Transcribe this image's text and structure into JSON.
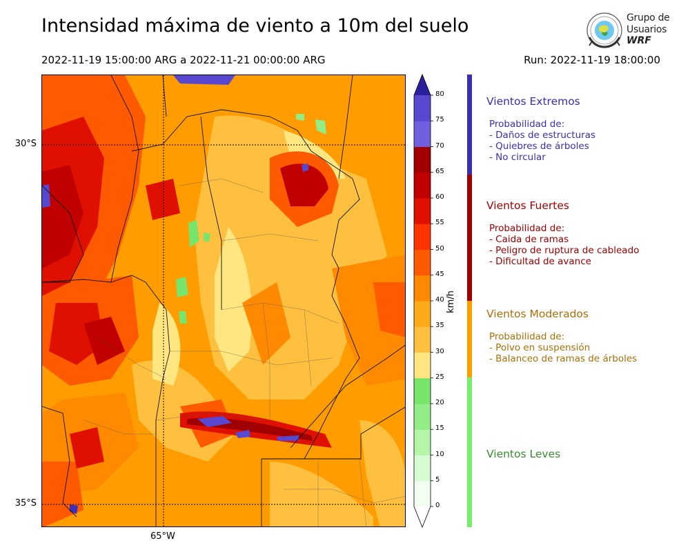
{
  "header": {
    "title": "Intensidad máxima de viento a 10m del suelo",
    "period": "2022-11-19 15:00:00 ARG  a  2022-11-21 00:00:00 ARG",
    "run": "Run: 2022-11-19 18:00:00"
  },
  "logo": {
    "line1": "Grupo de",
    "line2": "Usuarios",
    "line3": "WRF"
  },
  "map": {
    "lat_labels": [
      {
        "text": "30°S",
        "value": -30
      },
      {
        "text": "35°S",
        "value": -35
      }
    ],
    "lon_labels": [
      {
        "text": "65°W",
        "value": -65
      }
    ]
  },
  "colorbar": {
    "unit": "km/h",
    "ticks": [
      "0",
      "5",
      "10",
      "15",
      "20",
      "25",
      "30",
      "35",
      "40",
      "45",
      "50",
      "55",
      "60",
      "65",
      "70",
      "75",
      "80"
    ],
    "colors": [
      "#f2fef0",
      "#d7fbd2",
      "#b4f5aa",
      "#92ed86",
      "#77e56b",
      "#ffe680",
      "#ffc040",
      "#ffaa18",
      "#ff8a00",
      "#ff5a00",
      "#ff3200",
      "#e01000",
      "#c00000",
      "#a00000",
      "#7060e0",
      "#5848d0",
      "#3c30b8",
      "#2a1f9c"
    ]
  },
  "categories": [
    {
      "title": "Vientos Extremos",
      "color": "#3a2fb0",
      "lines": [
        "Probabilidad de:",
        "- Daños de estructuras",
        "- Quiebres de árboles",
        "- No circular"
      ]
    },
    {
      "title": "Vientos Fuertes",
      "color": "#a00000",
      "lines": [
        "Probabilidad de:",
        "- Caida de ramas",
        "- Peligro de ruptura de cableado",
        "- Dificultad de avance"
      ]
    },
    {
      "title": "Vientos Moderados",
      "color": "#a8700a",
      "bar_color": "#ff9c00",
      "lines": [
        "Probabilidad de:",
        "- Polvo en suspensión",
        "- Balanceo de ramas de árboles"
      ]
    },
    {
      "title": "Vientos Leves",
      "color": "#3a8a30",
      "bar_color": "#77ee6b",
      "lines": []
    }
  ]
}
